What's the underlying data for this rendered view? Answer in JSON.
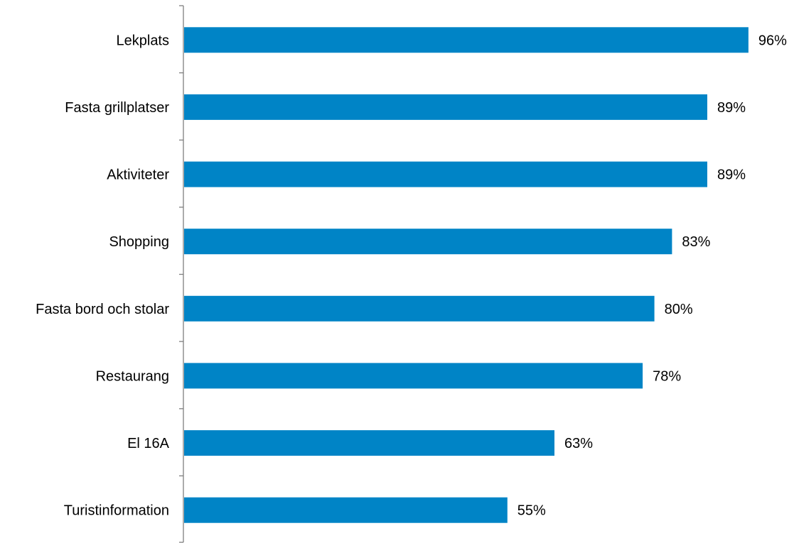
{
  "chart_data": {
    "type": "bar",
    "orientation": "horizontal",
    "categories": [
      "Lekplats",
      "Fasta grillplatser",
      "Aktiviteter",
      "Shopping ",
      "Fasta bord och stolar",
      "Restaurang",
      "El 16A",
      "Turistinformation"
    ],
    "values": [
      96,
      89,
      89,
      83,
      80,
      78,
      63,
      55
    ],
    "value_labels": [
      "96%",
      "89%",
      "89%",
      "83%",
      "80%",
      "78%",
      "63%",
      "55%"
    ],
    "title": "",
    "xlabel": "",
    "ylabel": "",
    "xlim": [
      0,
      100
    ],
    "grid": false,
    "legend": "none",
    "bar_color": "#0084C6",
    "axis_color": "#7F7F7F"
  }
}
